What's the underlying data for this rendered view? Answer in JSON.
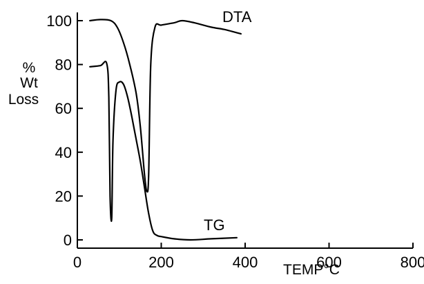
{
  "chart_data": {
    "type": "line",
    "ylabel": [
      "%",
      "Wt",
      "Loss"
    ],
    "xlabel": "TEMP°C",
    "xlim": [
      0,
      800
    ],
    "ylim": [
      0,
      100
    ],
    "x_ticks": [
      0,
      200,
      400,
      600,
      800
    ],
    "y_ticks": [
      0,
      20,
      40,
      60,
      80,
      100
    ],
    "series": [
      {
        "name": "DTA",
        "x": [
          30,
          55,
          80,
          95,
          110,
          125,
          140,
          150,
          160,
          166,
          170,
          175,
          185,
          200,
          230,
          250,
          280,
          320,
          350,
          390
        ],
        "y": [
          100,
          100.5,
          100,
          97,
          90,
          80,
          67,
          52,
          30,
          22,
          30,
          80,
          97,
          98,
          99,
          100,
          99,
          97,
          96,
          94
        ]
      },
      {
        "name": "TG",
        "x": [
          30,
          55,
          70,
          75,
          78,
          82,
          85,
          92,
          100,
          110,
          120,
          130,
          140,
          150,
          160,
          170,
          180,
          190,
          200,
          230,
          270,
          320,
          380
        ],
        "y": [
          79,
          79.5,
          80.5,
          65,
          20,
          10,
          45,
          68,
          72,
          71,
          65,
          56,
          46,
          36,
          24,
          12,
          4,
          2,
          1.5,
          0.5,
          0,
          0.5,
          1
        ]
      }
    ]
  }
}
